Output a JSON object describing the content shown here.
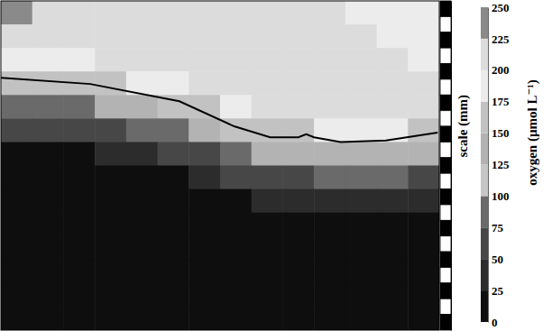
{
  "chart_data": {
    "type": "heatmap",
    "ylabel": "scale (mm)",
    "xlim": [
      0,
      28
    ],
    "ylim": [
      0,
      21
    ],
    "yticks": [
      0,
      1,
      2,
      3,
      4,
      5,
      6,
      7,
      8,
      9,
      10,
      11,
      12,
      13,
      14,
      15,
      16,
      17,
      18,
      19,
      20,
      21
    ],
    "tick_labels": false,
    "x_bins": [
      0,
      2,
      4,
      6,
      8,
      10,
      12,
      14,
      16,
      18,
      20,
      22,
      24,
      26,
      28
    ],
    "y_bins": [
      0,
      1.5,
      3,
      4.5,
      6,
      7.5,
      9,
      10.5,
      12,
      13.5,
      15,
      16.5,
      18,
      19.5,
      21
    ],
    "cells": [
      [
        230,
        205,
        205,
        205,
        205,
        205,
        205,
        205,
        205,
        205,
        205,
        190,
        185,
        185
      ],
      [
        205,
        205,
        205,
        205,
        205,
        205,
        205,
        205,
        205,
        205,
        205,
        200,
        190,
        185
      ],
      [
        195,
        195,
        195,
        205,
        205,
        205,
        205,
        205,
        205,
        205,
        205,
        205,
        200,
        195
      ],
      [
        165,
        165,
        165,
        165,
        195,
        195,
        205,
        205,
        205,
        205,
        205,
        205,
        205,
        200
      ],
      [
        85,
        85,
        85,
        125,
        125,
        165,
        165,
        195,
        205,
        205,
        205,
        205,
        205,
        205
      ],
      [
        50,
        50,
        50,
        50,
        85,
        85,
        125,
        165,
        165,
        165,
        195,
        195,
        195,
        165
      ],
      [
        15,
        15,
        15,
        28,
        28,
        50,
        50,
        85,
        125,
        125,
        125,
        125,
        125,
        125
      ],
      [
        6,
        6,
        6,
        15,
        15,
        15,
        28,
        50,
        50,
        50,
        85,
        85,
        85,
        50
      ],
      [
        6,
        6,
        6,
        6,
        6,
        6,
        15,
        15,
        28,
        28,
        28,
        28,
        28,
        28
      ],
      [
        6,
        6,
        6,
        6,
        6,
        6,
        6,
        6,
        15,
        15,
        15,
        15,
        15,
        15
      ],
      [
        5,
        6,
        5,
        6,
        6,
        5,
        6,
        6,
        8,
        8,
        8,
        8,
        8,
        8
      ],
      [
        5,
        5,
        5,
        5,
        5,
        5,
        5,
        5,
        5,
        5,
        5,
        5,
        5,
        5
      ],
      [
        5,
        5,
        5,
        5,
        5,
        5,
        5,
        5,
        5,
        5,
        5,
        5,
        5,
        5
      ],
      [
        5,
        5,
        5,
        5,
        5,
        5,
        5,
        5,
        5,
        5,
        5,
        5,
        5,
        5
      ]
    ],
    "interface": {
      "x": [
        0,
        5.7,
        11.4,
        14.9,
        17.2,
        19.0,
        19.5,
        20.0,
        21.7,
        24.6,
        27.9
      ],
      "y": [
        4.9,
        5.3,
        6.4,
        8.0,
        8.7,
        8.7,
        8.5,
        8.7,
        9.0,
        8.9,
        8.4
      ]
    },
    "colorbar": {
      "label": "oxygen (µmol L⁻¹)",
      "range": [
        0,
        250
      ],
      "ticks": [
        0,
        25,
        50,
        75,
        100,
        125,
        150,
        175,
        200,
        225,
        250
      ],
      "colors": [
        "#0e0e0e",
        "#2c2c2c",
        "#474747",
        "#6a6a6a",
        "#c6c6c6",
        "#b3b3b3",
        "#c2c2c2",
        "#ececec",
        "#dcdcdc",
        "#8a8a8a"
      ]
    }
  }
}
